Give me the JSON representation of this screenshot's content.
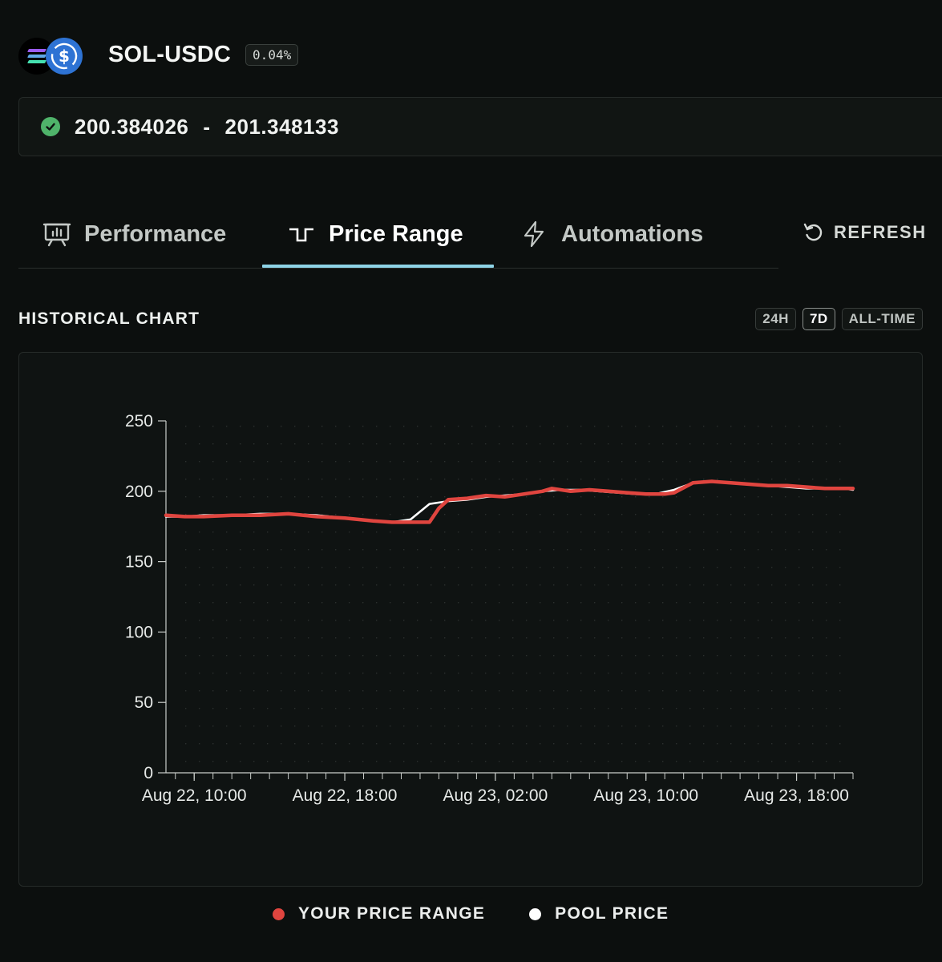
{
  "header": {
    "pair_name": "SOL-USDC",
    "fee_badge": "0.04%"
  },
  "range": {
    "lower": "200.384026",
    "separator": "-",
    "upper": "201.348133",
    "status_icon": "check-circle-icon",
    "status_color": "#4fb36a"
  },
  "tabs": [
    {
      "label": "Performance",
      "icon": "presentation-chart-icon",
      "active": false
    },
    {
      "label": "Price Range",
      "icon": "step-line-icon",
      "active": true
    },
    {
      "label": "Automations",
      "icon": "lightning-icon",
      "active": false
    }
  ],
  "refresh": {
    "label": "REFRESH",
    "icon": "refresh-icon"
  },
  "historical": {
    "title": "HISTORICAL CHART",
    "periods": [
      {
        "label": "24H",
        "active": false
      },
      {
        "label": "7D",
        "active": true
      },
      {
        "label": "ALL-TIME",
        "active": false
      }
    ]
  },
  "colors": {
    "accent_tab": "#8ed3e6",
    "your_range": "#e0453f",
    "pool_price": "#ffffff"
  },
  "legend": {
    "your_range": "YOUR PRICE RANGE",
    "pool_price": "POOL PRICE"
  },
  "chart_data": {
    "type": "line",
    "title": "",
    "xlabel": "",
    "ylabel": "",
    "ylim": [
      0,
      250
    ],
    "xlim_hours": [
      8.5,
      36.5
    ],
    "y_ticks": [
      0,
      50,
      100,
      150,
      200,
      250
    ],
    "x_ticks": [
      {
        "label": "Aug 22, 10:00",
        "hour": 10
      },
      {
        "label": "Aug 22, 18:00",
        "hour": 18
      },
      {
        "label": "Aug 23, 02:00",
        "hour": 26
      },
      {
        "label": "Aug 23, 10:00",
        "hour": 34
      },
      {
        "label": "Aug 23, 18:00",
        "hour": 42
      }
    ],
    "grid": "dotted",
    "legend_position": "bottom-center",
    "series": [
      {
        "name": "POOL PRICE",
        "color": "#ffffff",
        "points": [
          [
            8.5,
            182
          ],
          [
            9.5,
            182
          ],
          [
            10.5,
            183
          ],
          [
            12,
            183
          ],
          [
            13.5,
            184
          ],
          [
            15,
            184
          ],
          [
            16.5,
            183
          ],
          [
            18,
            181
          ],
          [
            19.5,
            179
          ],
          [
            20.5,
            178
          ],
          [
            21.5,
            180
          ],
          [
            22.5,
            191
          ],
          [
            23.5,
            193
          ],
          [
            24.5,
            194
          ],
          [
            25.5,
            196
          ],
          [
            26.5,
            197
          ],
          [
            27.5,
            198
          ],
          [
            28.5,
            200
          ],
          [
            29.5,
            201
          ],
          [
            30.5,
            201
          ],
          [
            31.5,
            200
          ],
          [
            32.5,
            199
          ],
          [
            33.5,
            198
          ],
          [
            34.5,
            198
          ],
          [
            35.5,
            201
          ],
          [
            36.5,
            206
          ],
          [
            37.5,
            207
          ],
          [
            38.5,
            206
          ],
          [
            39.5,
            205
          ],
          [
            40.5,
            204
          ],
          [
            41.5,
            203
          ],
          [
            42.5,
            202
          ],
          [
            43.5,
            202
          ],
          [
            44.5,
            202
          ],
          [
            45,
            201
          ]
        ]
      },
      {
        "name": "YOUR PRICE RANGE",
        "color": "#e0453f",
        "points": [
          [
            8.5,
            183
          ],
          [
            9.5,
            182
          ],
          [
            10.5,
            182
          ],
          [
            12,
            183
          ],
          [
            13.5,
            183
          ],
          [
            15,
            184
          ],
          [
            16.5,
            182
          ],
          [
            18,
            181
          ],
          [
            19.5,
            179
          ],
          [
            20.5,
            178
          ],
          [
            21.5,
            178
          ],
          [
            22.5,
            178
          ],
          [
            23,
            188
          ],
          [
            23.5,
            194
          ],
          [
            24.5,
            195
          ],
          [
            25.5,
            197
          ],
          [
            26.5,
            196
          ],
          [
            27.5,
            198
          ],
          [
            28.5,
            200
          ],
          [
            29,
            202
          ],
          [
            30,
            200
          ],
          [
            31,
            201
          ],
          [
            32,
            200
          ],
          [
            33,
            199
          ],
          [
            34,
            198
          ],
          [
            35,
            198
          ],
          [
            35.5,
            199
          ],
          [
            36.5,
            206
          ],
          [
            37.5,
            207
          ],
          [
            38.5,
            206
          ],
          [
            39.5,
            205
          ],
          [
            40.5,
            204
          ],
          [
            41.5,
            204
          ],
          [
            42.5,
            203
          ],
          [
            43.5,
            202
          ],
          [
            44.5,
            202
          ],
          [
            45,
            202
          ]
        ]
      }
    ]
  }
}
